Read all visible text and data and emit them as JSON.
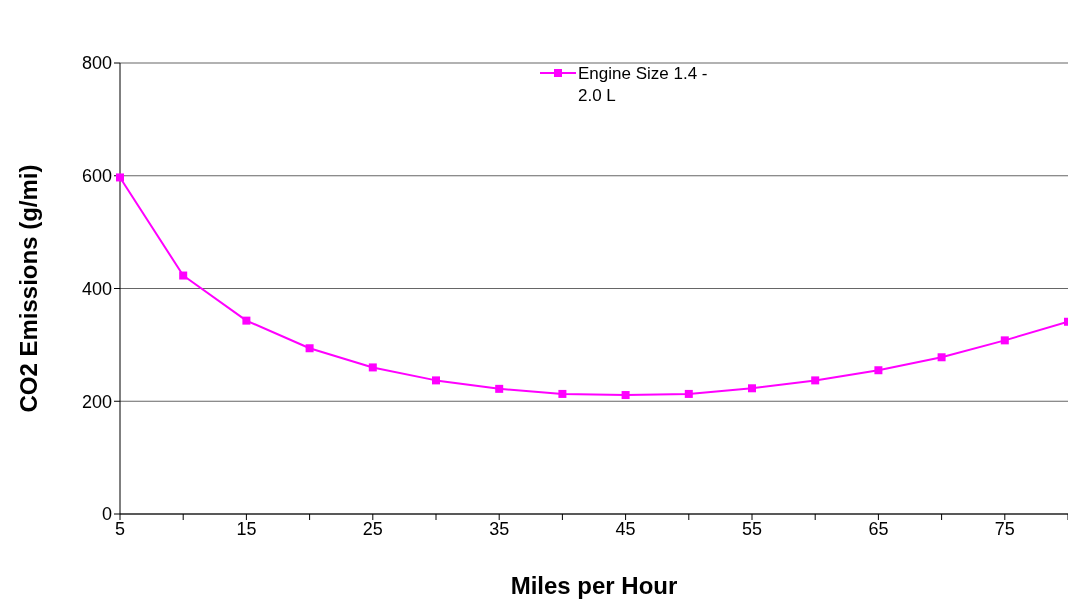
{
  "chart_data": {
    "type": "line",
    "xlabel": "Miles per Hour",
    "ylabel": "CO2 Emissions (g/mi)",
    "categories": [
      "5",
      null,
      "15",
      null,
      "25",
      null,
      "35",
      null,
      "45",
      null,
      "55",
      null,
      "65",
      null,
      "75",
      null
    ],
    "series": [
      {
        "name": "Engine Size 1.4 - 2.0 L",
        "color": "#ff00ff",
        "values": [
          597,
          423,
          343,
          294,
          260,
          237,
          222,
          213,
          211,
          213,
          223,
          237,
          255,
          278,
          308,
          341
        ]
      }
    ],
    "ylim": [
      0,
      800
    ],
    "yticks": [
      0,
      200,
      400,
      600,
      800
    ],
    "grid": "y",
    "legend": "top",
    "marker": "square",
    "line_style": "solid"
  }
}
